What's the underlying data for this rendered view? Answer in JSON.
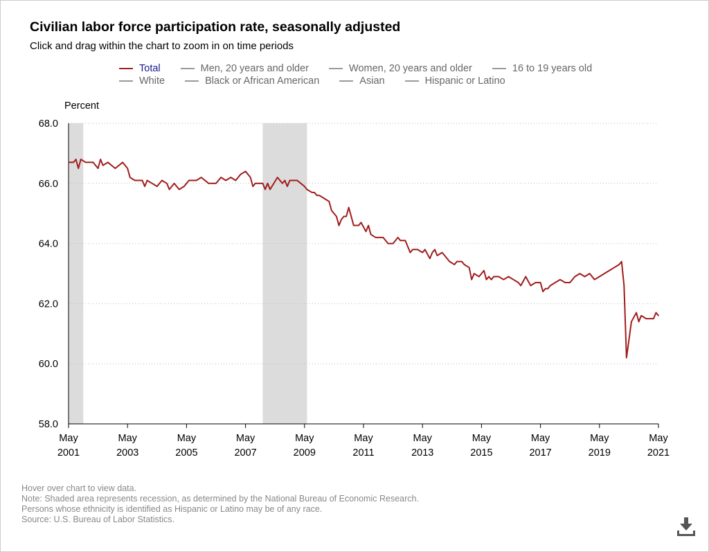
{
  "title": "Civilian labor force participation rate, seasonally adjusted",
  "subtitle": "Click and drag within the chart to zoom in on time periods",
  "legend": {
    "row1": [
      {
        "label": "Total",
        "active": true
      },
      {
        "label": "Men, 20 years and older",
        "active": false
      },
      {
        "label": "Women, 20 years and older",
        "active": false
      },
      {
        "label": "16 to 19 years old",
        "active": false
      }
    ],
    "row2": [
      {
        "label": "White",
        "active": false
      },
      {
        "label": "Black or African American",
        "active": false
      },
      {
        "label": "Asian",
        "active": false
      },
      {
        "label": "Hispanic or Latino",
        "active": false
      }
    ]
  },
  "footnotes": [
    "Hover over chart to view data.",
    "Note: Shaded area represents recession, as determined by the National Bureau of Economic Research.",
    "Persons whose ethnicity is identified as Hispanic or Latino may be of any race.",
    "Source: U.S. Bureau of Labor Statistics."
  ],
  "download_icon": "download-icon",
  "colors": {
    "series": "#a01c1c",
    "recession": "#dcdcdc",
    "grid": "#bbbbbb",
    "legend_active": "#1a1a8f",
    "legend_inactive": "#999999"
  },
  "chart_data": {
    "type": "line",
    "ylabel": "Percent",
    "ylim": [
      58.0,
      68.0
    ],
    "yticks": [
      "58.0",
      "60.0",
      "62.0",
      "64.0",
      "66.0",
      "68.0"
    ],
    "xlim": [
      "2001-05",
      "2021-05"
    ],
    "xticks": [
      {
        "month": "May",
        "year": "2001"
      },
      {
        "month": "May",
        "year": "2003"
      },
      {
        "month": "May",
        "year": "2005"
      },
      {
        "month": "May",
        "year": "2007"
      },
      {
        "month": "May",
        "year": "2009"
      },
      {
        "month": "May",
        "year": "2011"
      },
      {
        "month": "May",
        "year": "2013"
      },
      {
        "month": "May",
        "year": "2015"
      },
      {
        "month": "May",
        "year": "2017"
      },
      {
        "month": "May",
        "year": "2019"
      },
      {
        "month": "May",
        "year": "2021"
      }
    ],
    "grid": "horizontal-dotted",
    "recessions": [
      {
        "start": "2001-03",
        "end": "2001-11"
      },
      {
        "start": "2007-12",
        "end": "2009-06"
      }
    ],
    "series": [
      {
        "name": "Total",
        "points": [
          [
            "2001-05",
            66.7
          ],
          [
            "2001-07",
            66.7
          ],
          [
            "2001-08",
            66.8
          ],
          [
            "2001-09",
            66.5
          ],
          [
            "2001-10",
            66.8
          ],
          [
            "2001-12",
            66.7
          ],
          [
            "2002-03",
            66.7
          ],
          [
            "2002-05",
            66.5
          ],
          [
            "2002-06",
            66.8
          ],
          [
            "2002-07",
            66.6
          ],
          [
            "2002-09",
            66.7
          ],
          [
            "2002-12",
            66.5
          ],
          [
            "2003-03",
            66.7
          ],
          [
            "2003-05",
            66.5
          ],
          [
            "2003-06",
            66.2
          ],
          [
            "2003-08",
            66.1
          ],
          [
            "2003-11",
            66.1
          ],
          [
            "2003-12",
            65.9
          ],
          [
            "2004-01",
            66.1
          ],
          [
            "2004-03",
            66.0
          ],
          [
            "2004-05",
            65.9
          ],
          [
            "2004-07",
            66.1
          ],
          [
            "2004-09",
            66.0
          ],
          [
            "2004-10",
            65.8
          ],
          [
            "2004-12",
            66.0
          ],
          [
            "2005-02",
            65.8
          ],
          [
            "2005-04",
            65.9
          ],
          [
            "2005-06",
            66.1
          ],
          [
            "2005-09",
            66.1
          ],
          [
            "2005-11",
            66.2
          ],
          [
            "2006-02",
            66.0
          ],
          [
            "2006-05",
            66.0
          ],
          [
            "2006-07",
            66.2
          ],
          [
            "2006-09",
            66.1
          ],
          [
            "2006-11",
            66.2
          ],
          [
            "2007-01",
            66.1
          ],
          [
            "2007-03",
            66.3
          ],
          [
            "2007-05",
            66.4
          ],
          [
            "2007-07",
            66.2
          ],
          [
            "2007-08",
            65.9
          ],
          [
            "2007-09",
            66.0
          ],
          [
            "2007-12",
            66.0
          ],
          [
            "2008-01",
            65.8
          ],
          [
            "2008-02",
            66.0
          ],
          [
            "2008-03",
            65.8
          ],
          [
            "2008-06",
            66.2
          ],
          [
            "2008-08",
            66.0
          ],
          [
            "2008-09",
            66.1
          ],
          [
            "2008-10",
            65.9
          ],
          [
            "2008-11",
            66.1
          ],
          [
            "2009-02",
            66.1
          ],
          [
            "2009-05",
            65.9
          ],
          [
            "2009-06",
            65.8
          ],
          [
            "2009-08",
            65.7
          ],
          [
            "2009-09",
            65.7
          ],
          [
            "2009-10",
            65.6
          ],
          [
            "2009-11",
            65.6
          ],
          [
            "2010-01",
            65.5
          ],
          [
            "2010-03",
            65.4
          ],
          [
            "2010-04",
            65.1
          ],
          [
            "2010-05",
            65.0
          ],
          [
            "2010-06",
            64.9
          ],
          [
            "2010-07",
            64.6
          ],
          [
            "2010-08",
            64.8
          ],
          [
            "2010-09",
            64.9
          ],
          [
            "2010-10",
            64.9
          ],
          [
            "2010-11",
            65.2
          ],
          [
            "2010-12",
            64.9
          ],
          [
            "2011-01",
            64.6
          ],
          [
            "2011-03",
            64.6
          ],
          [
            "2011-04",
            64.7
          ],
          [
            "2011-06",
            64.4
          ],
          [
            "2011-07",
            64.6
          ],
          [
            "2011-08",
            64.3
          ],
          [
            "2011-10",
            64.2
          ],
          [
            "2012-01",
            64.2
          ],
          [
            "2012-03",
            64.0
          ],
          [
            "2012-05",
            64.0
          ],
          [
            "2012-07",
            64.2
          ],
          [
            "2012-08",
            64.1
          ],
          [
            "2012-10",
            64.1
          ],
          [
            "2012-12",
            63.7
          ],
          [
            "2013-01",
            63.8
          ],
          [
            "2013-03",
            63.8
          ],
          [
            "2013-05",
            63.7
          ],
          [
            "2013-06",
            63.8
          ],
          [
            "2013-08",
            63.5
          ],
          [
            "2013-09",
            63.7
          ],
          [
            "2013-10",
            63.8
          ],
          [
            "2013-11",
            63.6
          ],
          [
            "2014-01",
            63.7
          ],
          [
            "2014-03",
            63.5
          ],
          [
            "2014-04",
            63.4
          ],
          [
            "2014-06",
            63.3
          ],
          [
            "2014-07",
            63.4
          ],
          [
            "2014-09",
            63.4
          ],
          [
            "2014-10",
            63.3
          ],
          [
            "2014-12",
            63.2
          ],
          [
            "2015-01",
            62.8
          ],
          [
            "2015-02",
            63.0
          ],
          [
            "2015-04",
            62.9
          ],
          [
            "2015-06",
            63.1
          ],
          [
            "2015-07",
            62.8
          ],
          [
            "2015-08",
            62.9
          ],
          [
            "2015-09",
            62.8
          ],
          [
            "2015-10",
            62.9
          ],
          [
            "2015-12",
            62.9
          ],
          [
            "2016-02",
            62.8
          ],
          [
            "2016-04",
            62.9
          ],
          [
            "2016-06",
            62.8
          ],
          [
            "2016-08",
            62.7
          ],
          [
            "2016-09",
            62.6
          ],
          [
            "2016-11",
            62.9
          ],
          [
            "2017-01",
            62.6
          ],
          [
            "2017-03",
            62.7
          ],
          [
            "2017-05",
            62.7
          ],
          [
            "2017-06",
            62.4
          ],
          [
            "2017-07",
            62.5
          ],
          [
            "2017-08",
            62.5
          ],
          [
            "2017-09",
            62.6
          ],
          [
            "2017-11",
            62.7
          ],
          [
            "2018-01",
            62.8
          ],
          [
            "2018-03",
            62.7
          ],
          [
            "2018-05",
            62.7
          ],
          [
            "2018-07",
            62.9
          ],
          [
            "2018-09",
            63.0
          ],
          [
            "2018-11",
            62.9
          ],
          [
            "2019-01",
            63.0
          ],
          [
            "2019-03",
            62.8
          ],
          [
            "2019-05",
            62.9
          ],
          [
            "2019-07",
            63.0
          ],
          [
            "2019-09",
            63.1
          ],
          [
            "2019-11",
            63.2
          ],
          [
            "2020-01",
            63.3
          ],
          [
            "2020-02",
            63.4
          ],
          [
            "2020-03",
            62.6
          ],
          [
            "2020-04",
            60.2
          ],
          [
            "2020-05",
            60.8
          ],
          [
            "2020-06",
            61.4
          ],
          [
            "2020-08",
            61.7
          ],
          [
            "2020-09",
            61.4
          ],
          [
            "2020-10",
            61.6
          ],
          [
            "2020-12",
            61.5
          ],
          [
            "2021-02",
            61.5
          ],
          [
            "2021-03",
            61.5
          ],
          [
            "2021-04",
            61.7
          ],
          [
            "2021-05",
            61.6
          ]
        ]
      }
    ]
  }
}
